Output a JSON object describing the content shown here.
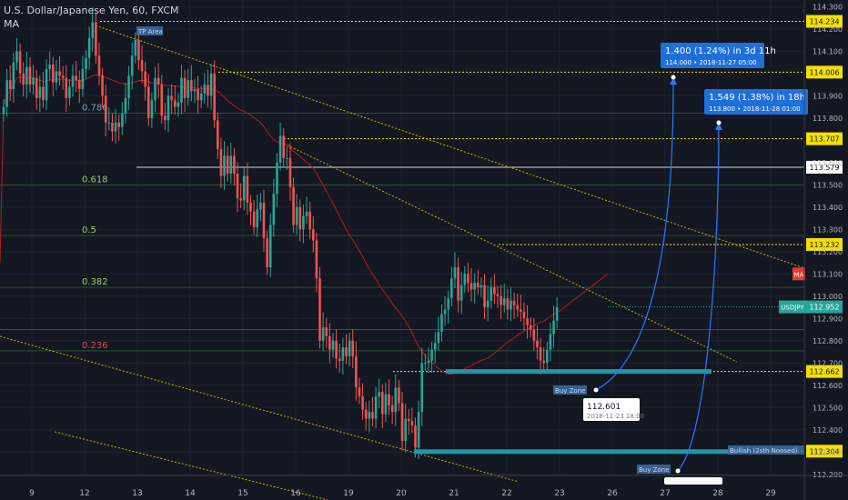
{
  "header": {
    "symbol_title": "U.S. Dollar/Japanese Yen, 60, FXCM",
    "indicator": "MA"
  },
  "colors": {
    "background": "#131722",
    "candle_up": "#26a69a",
    "candle_down": "#ef5350",
    "ma_line": "#b71c1c",
    "level_line": "#f5e000",
    "fib_line": "#3d7a3d",
    "buy_zone": "#2196a8",
    "projection": "#2979ff"
  },
  "chart_data": {
    "type": "candlestick",
    "symbol": "USDJPY",
    "interval": "60",
    "x_ticks": [
      "9",
      "12",
      "13",
      "14",
      "15",
      "16",
      "19",
      "20",
      "21",
      "22",
      "23",
      "26",
      "27",
      "28",
      "29"
    ],
    "y_ticks": [
      114.3,
      114.2,
      114.1,
      113.9,
      113.8,
      113.6,
      113.5,
      113.4,
      113.3,
      113.2,
      113.1,
      113.0,
      112.9,
      112.8,
      112.7,
      112.6,
      112.5,
      112.4,
      112.3,
      112.2
    ],
    "ylim": [
      112.195,
      114.33
    ],
    "grid": true,
    "last_price": 112.952,
    "last_price_label": "USDJPY",
    "ma_label": "MA",
    "price_levels": [
      114.234,
      114.006,
      113.707,
      113.579,
      113.232,
      112.662,
      112.304
    ],
    "fibonacci": [
      {
        "label": "0.786",
        "price": 113.822
      },
      {
        "label": "0.618",
        "price": 113.5
      },
      {
        "label": "0.5",
        "price": 113.272
      },
      {
        "label": "0.382",
        "price": 113.04
      },
      {
        "label": "0.236",
        "price": 112.755
      }
    ],
    "zones": [
      {
        "label": "TP Area",
        "price": 114.2
      },
      {
        "label": "Buy Zone",
        "price": 112.645
      },
      {
        "label": "Buy Zone",
        "price": 112.3
      },
      {
        "label": "Bullish (2sth Noosed)",
        "price": 112.33
      }
    ],
    "projections": [
      {
        "text": "1.400 (1.24%) in 3d 11h",
        "detail": "114.000  •  2018-11-27  05:00",
        "from_price": 112.601,
        "to_price": 114.0
      },
      {
        "text": "1.549 (1.38%) in 18h",
        "detail": "113.800  •  2018-11-28  01:00",
        "from_price": 112.251,
        "to_price": 113.8
      }
    ],
    "pivot": {
      "price": "112.601",
      "date": "2018-11-23 18:00"
    },
    "series": [
      {
        "close": [
          113.85,
          113.97,
          113.93,
          114.05,
          114.1,
          114.0,
          113.95,
          114.03,
          113.95,
          113.98,
          113.89,
          113.94,
          113.88,
          114.02,
          114.04,
          113.96,
          114.01,
          113.99,
          113.98,
          113.89,
          113.94,
          113.99,
          113.97,
          113.93,
          114.02,
          114.07,
          114.16,
          114.23,
          114.08,
          113.99,
          113.9,
          113.78,
          113.78,
          113.74,
          113.78,
          113.76,
          113.82,
          113.89,
          113.99,
          114.08,
          114.15,
          114.06,
          114.01,
          113.94,
          113.8,
          113.88,
          113.98,
          113.95,
          113.81,
          113.79,
          113.9,
          113.88,
          113.85,
          113.87,
          113.98,
          113.89,
          113.97,
          113.92,
          113.93,
          113.88,
          113.91,
          113.95,
          113.9,
          114.0,
          113.79,
          113.66,
          113.54,
          113.63,
          113.55,
          113.63,
          113.55,
          113.44,
          113.43,
          113.54,
          113.42,
          113.38,
          113.31,
          113.39,
          113.42,
          113.26,
          113.13,
          113.32,
          113.46,
          113.6,
          113.72,
          113.62,
          113.62,
          113.49,
          113.32,
          113.4,
          113.3,
          113.36,
          113.38,
          113.3,
          113.25,
          113.08,
          112.8,
          112.86,
          112.82,
          112.76,
          112.8,
          112.72,
          112.71,
          112.77,
          112.73,
          112.8,
          112.73,
          112.59,
          112.55,
          112.49,
          112.45,
          112.48,
          112.45,
          112.55,
          112.57,
          112.47,
          112.56,
          112.51,
          112.48,
          112.59,
          112.52,
          112.35,
          112.45,
          112.44,
          112.42,
          112.32,
          112.48,
          112.7,
          112.7,
          112.71,
          112.76,
          112.79,
          112.84,
          112.92,
          112.94,
          112.99,
          113.08,
          113.13,
          112.98,
          113.05,
          113.1,
          113.06,
          113.03,
          113.06,
          113.04,
          113.05,
          112.95,
          112.98,
          113.04,
          113.01,
          113.0,
          112.96,
          112.99,
          112.94,
          112.98,
          112.96,
          112.94,
          112.93,
          112.9,
          112.87,
          112.85,
          112.8,
          112.77,
          112.71,
          112.7,
          112.76,
          112.83,
          112.89,
          112.95
        ]
      }
    ]
  }
}
